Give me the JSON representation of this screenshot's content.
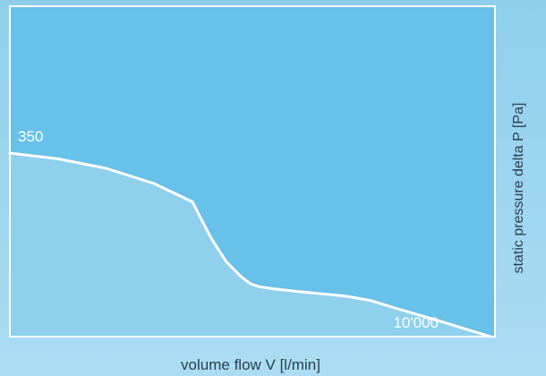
{
  "chart_data": {
    "type": "area",
    "title": "",
    "xlabel": "volume flow V [l/min]",
    "ylabel": "static pressure delta P [Pa]",
    "xlim": [
      0,
      10000
    ],
    "ylim": [
      0,
      350
    ],
    "grid": false,
    "y_max_label": "350",
    "x_max_label": "10'000",
    "series": [
      {
        "x": [
          0,
          1000,
          2000,
          3000,
          3800,
          4000,
          4200,
          4500,
          4800,
          5000,
          5200,
          5500,
          6000,
          7000,
          7500,
          8000,
          9000,
          10000
        ],
        "values": [
          350,
          339,
          321,
          292,
          257,
          221,
          186,
          143,
          115,
          101,
          95,
          91,
          86,
          77,
          69,
          55,
          28,
          0
        ]
      }
    ],
    "colors": {
      "plot_background": "#67c1e8",
      "area_fill": "#8fd0ec",
      "curve": "#ffffff",
      "frame": "#ffffff",
      "axis_text": "#2c3e50"
    }
  }
}
